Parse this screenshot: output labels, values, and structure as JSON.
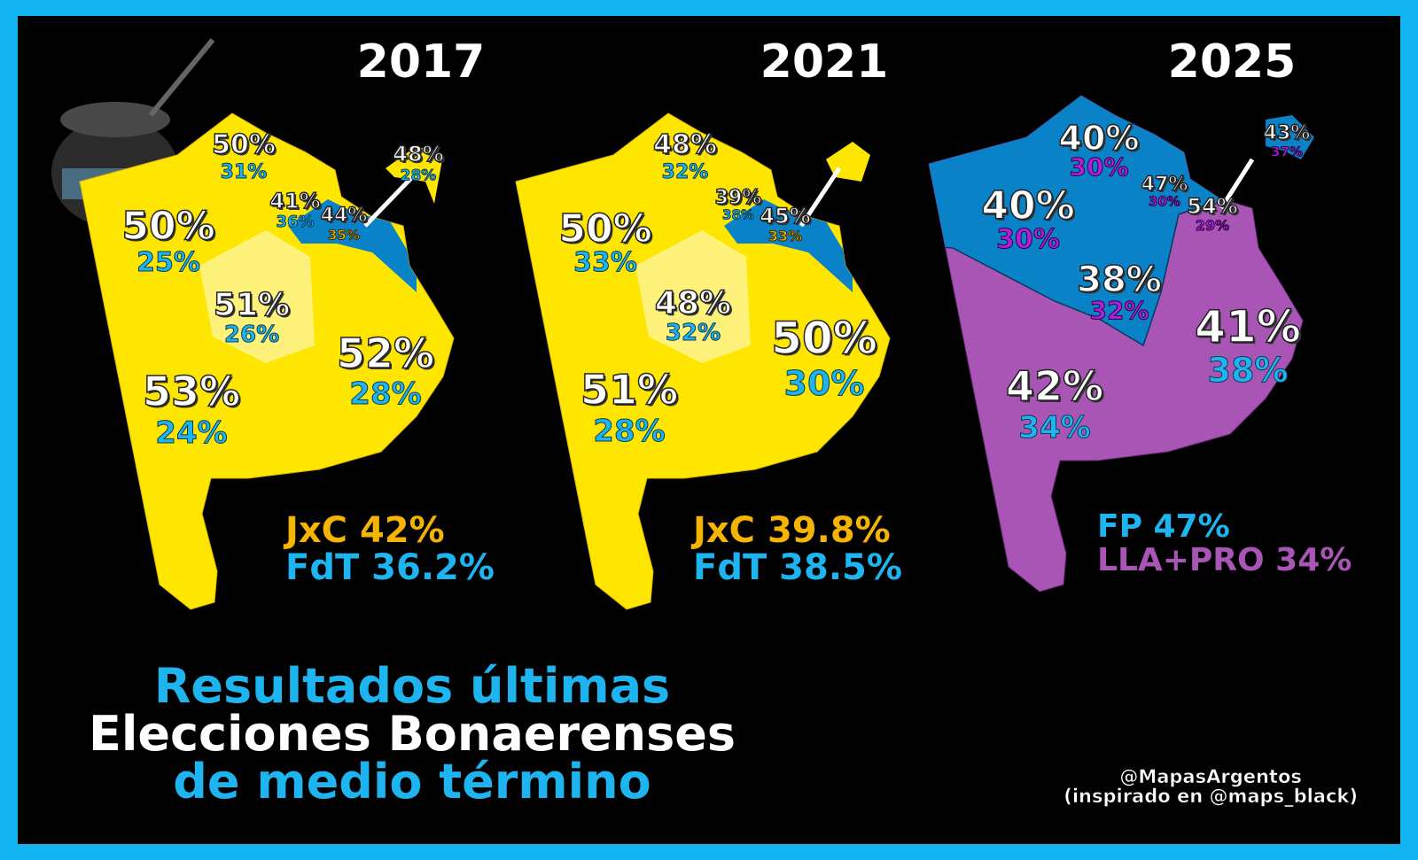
{
  "colors": {
    "jxc": "#f5b400",
    "fdt": "#1eb4f0",
    "fp": "#1eb4f0",
    "lla": "#a855b5",
    "map_yellow": "#ffe600",
    "map_blue": "#0a82c8",
    "map_purple": "#a855b5",
    "border": "#14b4f0"
  },
  "maps": [
    {
      "year": "2017",
      "labels": [
        {
          "top": "50%",
          "bottom": "31%"
        },
        {
          "top": "48%",
          "bottom": "28%"
        },
        {
          "top": "41%",
          "bottom": "36%"
        },
        {
          "top": "44%",
          "bottom": "35%"
        },
        {
          "top": "50%",
          "bottom": "25%"
        },
        {
          "top": "51%",
          "bottom": "26%"
        },
        {
          "top": "52%",
          "bottom": "28%"
        },
        {
          "top": "53%",
          "bottom": "24%"
        }
      ],
      "totals": [
        {
          "text": "JxC 42%"
        },
        {
          "text": "FdT 36.2%"
        }
      ]
    },
    {
      "year": "2021",
      "labels": [
        {
          "top": "48%",
          "bottom": "32%"
        },
        {
          "top": "39%",
          "bottom": "38%"
        },
        {
          "top": "45%",
          "bottom": "33%"
        },
        {
          "top": "50%",
          "bottom": "33%"
        },
        {
          "top": "48%",
          "bottom": "32%"
        },
        {
          "top": "50%",
          "bottom": "30%"
        },
        {
          "top": "51%",
          "bottom": "28%"
        }
      ],
      "totals": [
        {
          "text": "JxC 39.8%"
        },
        {
          "text": "FdT 38.5%"
        }
      ]
    },
    {
      "year": "2025",
      "labels": [
        {
          "top": "40%",
          "bottom": "30%"
        },
        {
          "top": "43%",
          "bottom": "37%"
        },
        {
          "top": "47%",
          "bottom": "30%"
        },
        {
          "top": "54%",
          "bottom": "29%"
        },
        {
          "top": "40%",
          "bottom": "30%"
        },
        {
          "top": "38%",
          "bottom": "32%"
        },
        {
          "top": "41%",
          "bottom": "38%"
        },
        {
          "top": "42%",
          "bottom": "34%"
        }
      ],
      "totals": [
        {
          "text": "FP 47%"
        },
        {
          "text": "LLA+PRO 34%"
        }
      ]
    }
  ],
  "title": {
    "line1": "Resultados últimas",
    "line2": "Elecciones Bonaerenses",
    "line3": "de medio término"
  },
  "credit": {
    "line1": "@MapasArgentos",
    "line2": "(inspirado en @maps_black)"
  }
}
